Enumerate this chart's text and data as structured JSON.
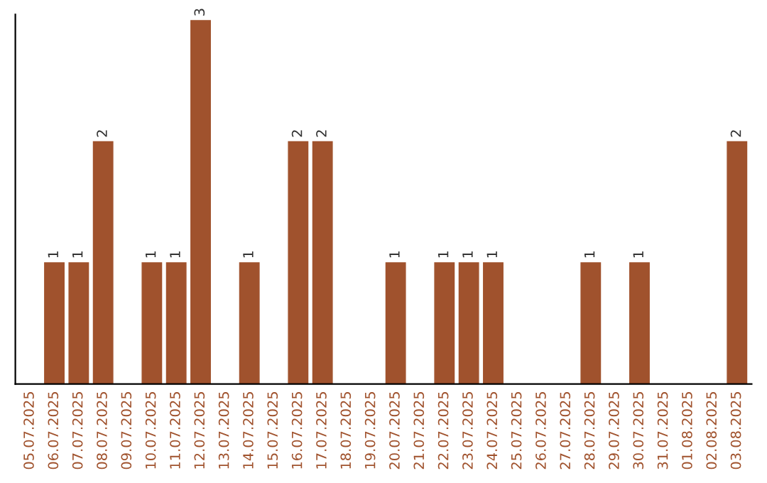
{
  "chart_data": {
    "type": "bar",
    "categories": [
      "05.07.2025",
      "06.07.2025",
      "07.07.2025",
      "08.07.2025",
      "09.07.2025",
      "10.07.2025",
      "11.07.2025",
      "12.07.2025",
      "13.07.2025",
      "14.07.2025",
      "15.07.2025",
      "16.07.2025",
      "17.07.2025",
      "18.07.2025",
      "19.07.2025",
      "20.07.2025",
      "21.07.2025",
      "22.07.2025",
      "23.07.2025",
      "24.07.2025",
      "25.07.2025",
      "26.07.2025",
      "27.07.2025",
      "28.07.2025",
      "29.07.2025",
      "30.07.2025",
      "31.07.2025",
      "01.08.2025",
      "02.08.2025",
      "03.08.2025"
    ],
    "values": [
      0,
      1,
      1,
      2,
      0,
      1,
      1,
      3,
      0,
      1,
      0,
      2,
      2,
      0,
      0,
      1,
      0,
      1,
      1,
      1,
      0,
      0,
      0,
      1,
      0,
      1,
      0,
      0,
      0,
      2
    ],
    "value_labels": [
      null,
      "1",
      "1",
      "2",
      null,
      "1",
      "1",
      "3",
      null,
      "1",
      null,
      "2",
      "2",
      null,
      null,
      "1",
      null,
      "1",
      "1",
      "1",
      null,
      null,
      null,
      "1",
      null,
      "1",
      null,
      null,
      null,
      "2"
    ],
    "color": "#a0522d",
    "ylim": [
      0,
      3.05
    ],
    "tick_labels": "x",
    "grid": false
  }
}
